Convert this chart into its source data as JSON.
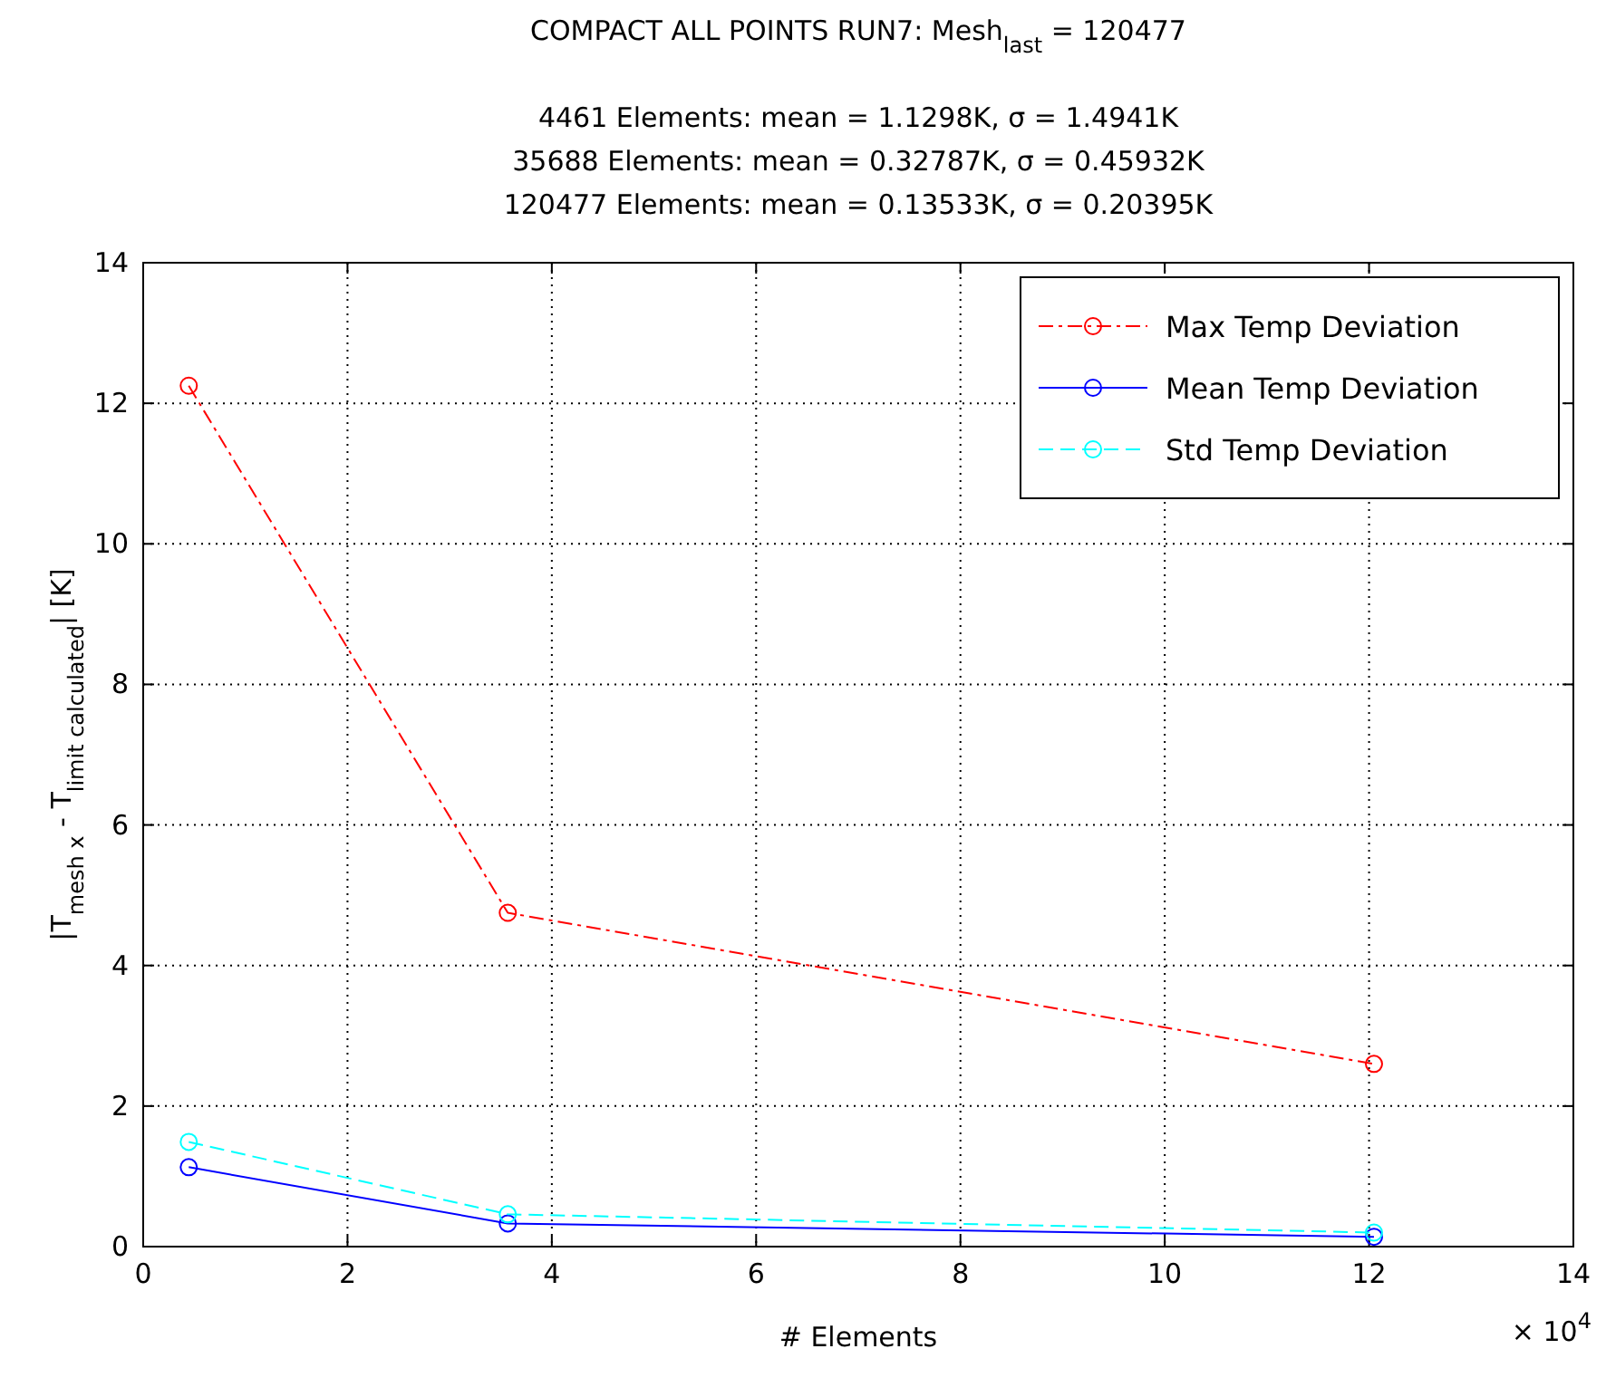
{
  "chart_data": {
    "type": "line",
    "title": "COMPACT ALL POINTS RUN7: Mesh$_{last}$ = 120477",
    "subtitle": "4461 Elements: mean = 1.1298K, σ = 1.4941K\n35688 Elements: mean = 0.32787K, σ = 0.45932K\n120477 Elements: mean = 0.13533K, σ = 0.20395K",
    "xlabel": "# Elements",
    "ylabel": "|T$_{mesh x}$ - T$_{limit calculated}$| [K]",
    "annotations": [
      "× 10$^{4}$"
    ],
    "x": [
      0.446,
      3.569,
      12.048
    ],
    "series": [
      {
        "name": "Max Temp Deviation",
        "color": "#ff0000",
        "values": [
          12.25,
          4.75,
          2.6
        ],
        "line_style": "dashdot"
      },
      {
        "name": "Mean Temp Deviation",
        "color": "#0000ff",
        "values": [
          1.13,
          0.33,
          0.14
        ],
        "line_style": "solid"
      },
      {
        "name": "Std Temp Deviation",
        "color": "#00ffff",
        "values": [
          1.49,
          0.46,
          0.2
        ],
        "line_style": "dashed"
      }
    ],
    "xlim": [
      0,
      14
    ],
    "xticks": [
      0,
      2,
      4,
      6,
      8,
      10,
      12,
      14
    ],
    "ylim": [
      0,
      14
    ],
    "yticks": [
      0,
      2,
      4,
      6,
      8,
      10,
      12,
      14
    ],
    "grid": true,
    "legend": "top right",
    "marker": "circle"
  }
}
